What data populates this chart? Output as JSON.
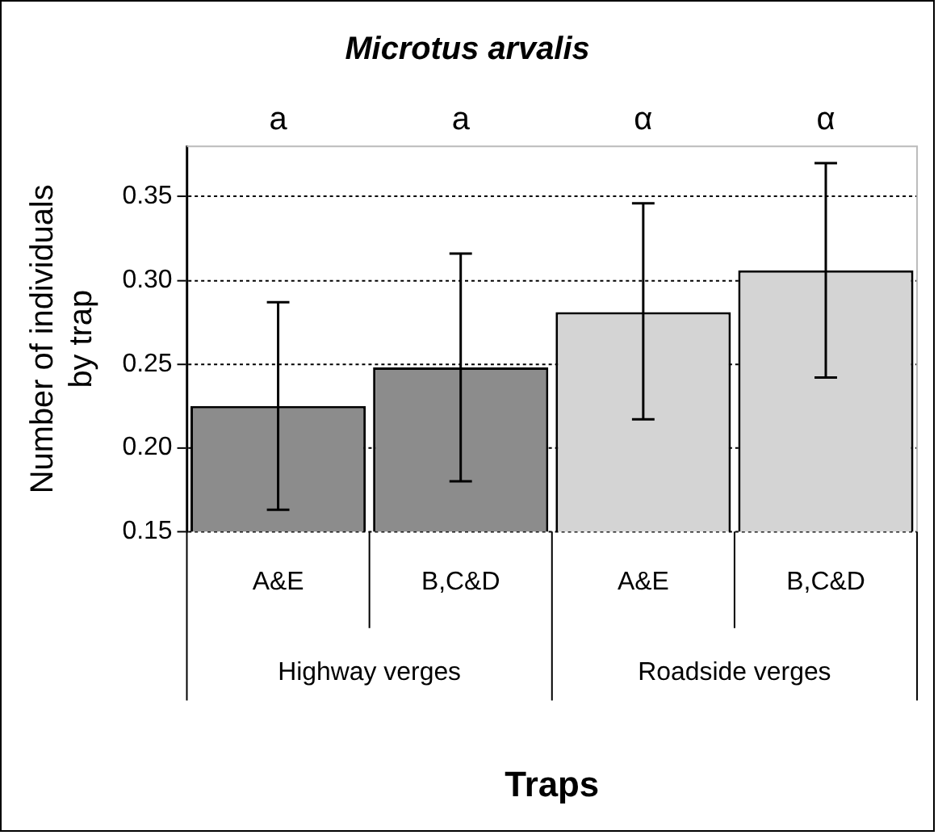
{
  "chart_data": {
    "type": "bar",
    "title": "Microtus arvalis",
    "xlabel": "Traps",
    "ylabel": "Number of individuals by trap",
    "categories": [
      "A&E",
      "B,C&D",
      "A&E",
      "B,C&D"
    ],
    "values": [
      0.225,
      0.248,
      0.281,
      0.306
    ],
    "colors": [
      "#8c8c8c",
      "#8c8c8c",
      "#d4d4d4",
      "#d4d4d4"
    ],
    "errors": [
      [
        0.163,
        0.287
      ],
      [
        0.18,
        0.316
      ],
      [
        0.217,
        0.346
      ],
      [
        0.242,
        0.37
      ]
    ],
    "annotations": [
      "a",
      "a",
      "α",
      "α",
      "Highway verges",
      "Roadside verges"
    ],
    "ylim": [
      0.15,
      0.38
    ],
    "yticks": [
      {
        "value": 0.15,
        "label": "0.15"
      },
      {
        "value": 0.2,
        "label": "0.20"
      },
      {
        "value": 0.25,
        "label": "0.25"
      },
      {
        "value": 0.3,
        "label": "0.30"
      },
      {
        "value": 0.35,
        "label": "0.35"
      }
    ],
    "grid": "y",
    "legend": false
  }
}
